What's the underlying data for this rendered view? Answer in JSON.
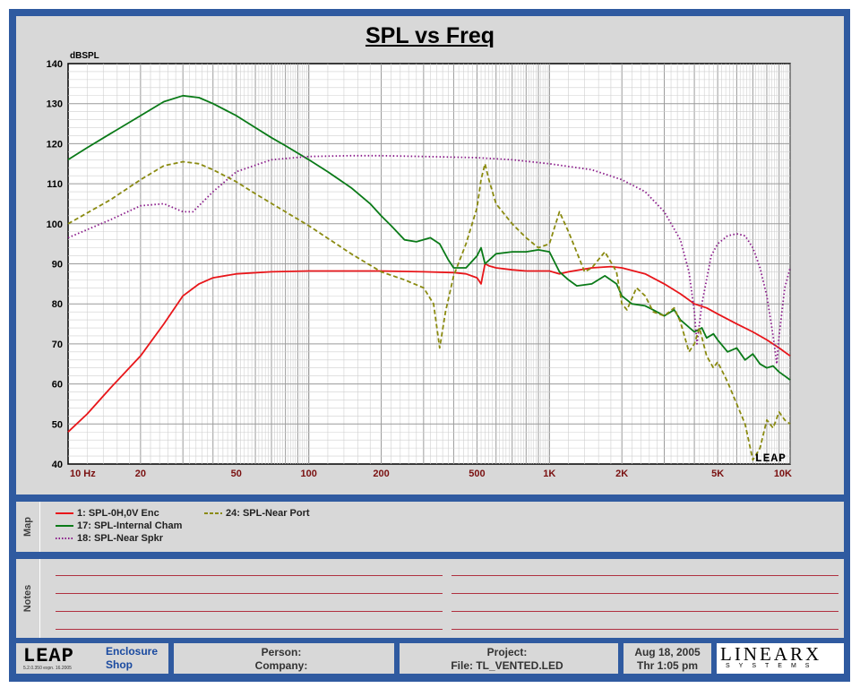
{
  "chart_data": {
    "type": "line",
    "title": "SPL vs Freq",
    "ylabel": "dBSPL",
    "xscale": "log",
    "xlim": [
      10,
      10000
    ],
    "ylim": [
      40,
      140
    ],
    "x_ticks": [
      10,
      20,
      50,
      100,
      200,
      500,
      1000,
      2000,
      5000,
      10000
    ],
    "x_tick_labels": [
      "10  Hz",
      "20",
      "50",
      "100",
      "200",
      "500",
      "1K",
      "2K",
      "5K",
      "10K"
    ],
    "y_ticks": [
      40,
      50,
      60,
      70,
      80,
      90,
      100,
      110,
      120,
      130,
      140
    ],
    "grid": true,
    "series": [
      {
        "name": "1: SPL-0H,0V Enc",
        "color": "#e8161a",
        "dash": "solid",
        "points": [
          [
            10,
            48
          ],
          [
            12,
            52.5
          ],
          [
            15,
            59
          ],
          [
            20,
            67
          ],
          [
            25,
            75
          ],
          [
            30,
            82
          ],
          [
            35,
            85
          ],
          [
            40,
            86.5
          ],
          [
            50,
            87.5
          ],
          [
            70,
            88
          ],
          [
            100,
            88.2
          ],
          [
            200,
            88.2
          ],
          [
            300,
            88
          ],
          [
            400,
            87.8
          ],
          [
            450,
            87.5
          ],
          [
            500,
            86.5
          ],
          [
            520,
            85
          ],
          [
            540,
            90
          ],
          [
            560,
            89.5
          ],
          [
            600,
            89
          ],
          [
            700,
            88.5
          ],
          [
            800,
            88.2
          ],
          [
            1000,
            88.2
          ],
          [
            1100,
            87.5
          ],
          [
            1200,
            88
          ],
          [
            1500,
            89
          ],
          [
            1800,
            89.3
          ],
          [
            2000,
            89
          ],
          [
            2500,
            87.5
          ],
          [
            3000,
            85
          ],
          [
            3500,
            82.5
          ],
          [
            4000,
            80
          ],
          [
            4500,
            79
          ],
          [
            5000,
            77.5
          ],
          [
            6000,
            75
          ],
          [
            7000,
            73
          ],
          [
            8000,
            71
          ],
          [
            9000,
            69
          ],
          [
            10000,
            67
          ]
        ]
      },
      {
        "name": "17: SPL-Internal Cham",
        "color": "#0a7a18",
        "dash": "solid",
        "points": [
          [
            10,
            116
          ],
          [
            12,
            119
          ],
          [
            15,
            122.5
          ],
          [
            20,
            127
          ],
          [
            25,
            130.5
          ],
          [
            30,
            132
          ],
          [
            35,
            131.5
          ],
          [
            40,
            130
          ],
          [
            50,
            127
          ],
          [
            60,
            124
          ],
          [
            70,
            121.5
          ],
          [
            80,
            119.5
          ],
          [
            100,
            116
          ],
          [
            120,
            113
          ],
          [
            150,
            109
          ],
          [
            180,
            105
          ],
          [
            200,
            102
          ],
          [
            220,
            99.5
          ],
          [
            250,
            96
          ],
          [
            280,
            95.5
          ],
          [
            320,
            96.5
          ],
          [
            350,
            95
          ],
          [
            380,
            91
          ],
          [
            400,
            89
          ],
          [
            450,
            89
          ],
          [
            500,
            92
          ],
          [
            520,
            94
          ],
          [
            540,
            90
          ],
          [
            600,
            92.5
          ],
          [
            700,
            93
          ],
          [
            800,
            93
          ],
          [
            900,
            93.5
          ],
          [
            1000,
            93
          ],
          [
            1100,
            88
          ],
          [
            1200,
            86
          ],
          [
            1300,
            84.5
          ],
          [
            1500,
            85
          ],
          [
            1700,
            87
          ],
          [
            1900,
            85
          ],
          [
            2000,
            82
          ],
          [
            2200,
            80
          ],
          [
            2500,
            79.5
          ],
          [
            2700,
            78.5
          ],
          [
            3000,
            77
          ],
          [
            3300,
            78.5
          ],
          [
            3500,
            76
          ],
          [
            4000,
            73
          ],
          [
            4300,
            74
          ],
          [
            4500,
            71.5
          ],
          [
            4800,
            72.5
          ],
          [
            5000,
            71
          ],
          [
            5500,
            68
          ],
          [
            6000,
            69
          ],
          [
            6500,
            66
          ],
          [
            7000,
            67.5
          ],
          [
            7500,
            65
          ],
          [
            8000,
            64
          ],
          [
            8500,
            64.5
          ],
          [
            9000,
            63
          ],
          [
            9500,
            62
          ],
          [
            10000,
            61
          ]
        ]
      },
      {
        "name": "18: SPL-Near Spkr",
        "color": "#8a1c8a",
        "dash": "dotted",
        "points": [
          [
            10,
            96.5
          ],
          [
            15,
            101
          ],
          [
            20,
            104.5
          ],
          [
            25,
            105
          ],
          [
            30,
            103
          ],
          [
            33,
            103
          ],
          [
            40,
            108
          ],
          [
            50,
            113
          ],
          [
            70,
            116
          ],
          [
            100,
            116.8
          ],
          [
            150,
            117
          ],
          [
            200,
            117
          ],
          [
            300,
            116.8
          ],
          [
            500,
            116.5
          ],
          [
            700,
            116
          ],
          [
            1000,
            115
          ],
          [
            1500,
            113.5
          ],
          [
            2000,
            111
          ],
          [
            2500,
            108
          ],
          [
            3000,
            103
          ],
          [
            3500,
            96
          ],
          [
            3800,
            88
          ],
          [
            4000,
            78
          ],
          [
            4100,
            70
          ],
          [
            4300,
            80
          ],
          [
            4700,
            92
          ],
          [
            5000,
            95
          ],
          [
            5500,
            97
          ],
          [
            6000,
            97.5
          ],
          [
            6500,
            97
          ],
          [
            7000,
            94
          ],
          [
            7500,
            89
          ],
          [
            8000,
            82
          ],
          [
            8500,
            72
          ],
          [
            8800,
            65
          ],
          [
            9000,
            72
          ],
          [
            9500,
            84
          ],
          [
            10000,
            89
          ]
        ]
      },
      {
        "name": "24: SPL-Near Port",
        "color": "#8a8a10",
        "dash": "dashed",
        "points": [
          [
            10,
            100
          ],
          [
            15,
            106
          ],
          [
            20,
            111
          ],
          [
            25,
            114.5
          ],
          [
            30,
            115.5
          ],
          [
            35,
            115
          ],
          [
            40,
            113.5
          ],
          [
            50,
            110.5
          ],
          [
            60,
            107.5
          ],
          [
            80,
            103
          ],
          [
            100,
            99.5
          ],
          [
            150,
            92.5
          ],
          [
            200,
            88
          ],
          [
            250,
            86
          ],
          [
            300,
            84
          ],
          [
            330,
            80
          ],
          [
            350,
            69
          ],
          [
            370,
            78
          ],
          [
            400,
            87
          ],
          [
            450,
            95
          ],
          [
            500,
            104
          ],
          [
            520,
            111
          ],
          [
            540,
            115
          ],
          [
            560,
            111
          ],
          [
            600,
            105
          ],
          [
            700,
            100
          ],
          [
            800,
            96.5
          ],
          [
            900,
            94
          ],
          [
            1000,
            95
          ],
          [
            1100,
            103
          ],
          [
            1200,
            98
          ],
          [
            1400,
            88
          ],
          [
            1500,
            89
          ],
          [
            1700,
            93
          ],
          [
            1900,
            88
          ],
          [
            2000,
            80
          ],
          [
            2100,
            78.5
          ],
          [
            2300,
            84
          ],
          [
            2500,
            82
          ],
          [
            2700,
            78
          ],
          [
            3000,
            77
          ],
          [
            3300,
            79
          ],
          [
            3500,
            75.5
          ],
          [
            3800,
            68
          ],
          [
            4000,
            70
          ],
          [
            4200,
            74
          ],
          [
            4500,
            67
          ],
          [
            4800,
            64
          ],
          [
            5000,
            65.5
          ],
          [
            5500,
            60.5
          ],
          [
            6000,
            55
          ],
          [
            6500,
            50
          ],
          [
            7000,
            41
          ],
          [
            7500,
            44
          ],
          [
            8000,
            51
          ],
          [
            8500,
            49
          ],
          [
            9000,
            53
          ],
          [
            9500,
            51
          ],
          [
            10000,
            50
          ]
        ]
      }
    ]
  },
  "logo": {
    "leap": "LEAP",
    "app_line1": "Enclosure",
    "app_line2": "Shop",
    "version": "5.2.0.350   expn. 16.2005",
    "watermark": "LEAP"
  },
  "map": {
    "label": "Map"
  },
  "notes": {
    "label": "Notes"
  },
  "footer": {
    "person": "Person:",
    "company": "Company:",
    "project": "Project:",
    "file": "File: TL_VENTED.LED",
    "date": "Aug 18, 2005",
    "time": "Thr  1:05 pm",
    "brand_top": "LINEARX",
    "brand_bottom": "SYSTEMS"
  },
  "colors": {
    "frame": "#2f5aa0",
    "panel": "#d8d8d8",
    "plot_bg": "#ffffff",
    "grid": "#b4b4b4",
    "axis_label": "#7a1010",
    "notes_line": "#b03040"
  }
}
